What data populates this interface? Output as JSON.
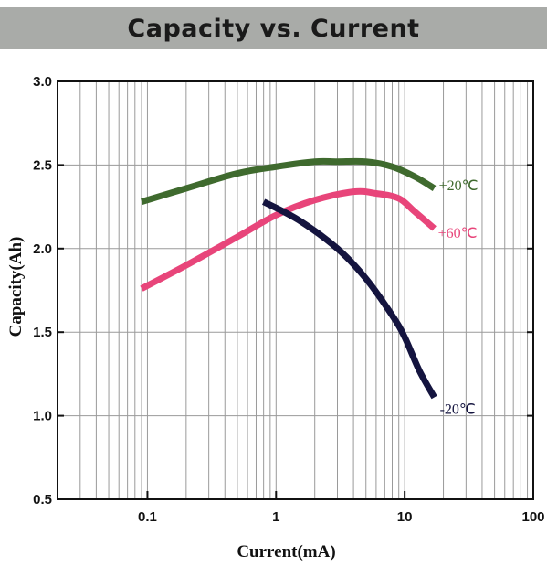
{
  "header": {
    "title": "Capacity vs. Current"
  },
  "chart_data": {
    "type": "line",
    "title": "Capacity vs. Current",
    "xlabel": "Current(mA)",
    "ylabel": "Capacity(Ah)",
    "xscale": "log",
    "xlim": [
      0.02,
      100
    ],
    "ylim": [
      0.5,
      3.0
    ],
    "grid": true,
    "x_ticks": [
      {
        "value": 0.1,
        "label": "0.1"
      },
      {
        "value": 1,
        "label": "1"
      },
      {
        "value": 10,
        "label": "10"
      },
      {
        "value": 100,
        "label": "100"
      }
    ],
    "y_ticks": [
      {
        "value": 0.5,
        "label": "0.5"
      },
      {
        "value": 1.0,
        "label": "1.0"
      },
      {
        "value": 1.5,
        "label": "1.5"
      },
      {
        "value": 2.0,
        "label": "2.0"
      },
      {
        "value": 2.5,
        "label": "2.5"
      },
      {
        "value": 3.0,
        "label": "3.0"
      }
    ],
    "series": [
      {
        "name": "+20℃",
        "color": "#3f6a2e",
        "points": [
          [
            0.09,
            2.28
          ],
          [
            0.2,
            2.36
          ],
          [
            0.5,
            2.45
          ],
          [
            1,
            2.49
          ],
          [
            2,
            2.52
          ],
          [
            3,
            2.52
          ],
          [
            5,
            2.52
          ],
          [
            8,
            2.49
          ],
          [
            12,
            2.43
          ],
          [
            17,
            2.36
          ]
        ]
      },
      {
        "name": "+60℃",
        "color": "#e8457a",
        "points": [
          [
            0.09,
            1.76
          ],
          [
            0.2,
            1.9
          ],
          [
            0.5,
            2.07
          ],
          [
            1,
            2.2
          ],
          [
            2,
            2.29
          ],
          [
            4,
            2.34
          ],
          [
            6,
            2.33
          ],
          [
            9,
            2.3
          ],
          [
            12,
            2.22
          ],
          [
            17,
            2.12
          ]
        ]
      },
      {
        "name": "-20℃",
        "color": "#14143f",
        "points": [
          [
            0.8,
            2.28
          ],
          [
            1.5,
            2.17
          ],
          [
            3,
            2.0
          ],
          [
            5,
            1.82
          ],
          [
            8,
            1.6
          ],
          [
            10,
            1.47
          ],
          [
            13,
            1.27
          ],
          [
            17,
            1.11
          ]
        ]
      }
    ]
  }
}
